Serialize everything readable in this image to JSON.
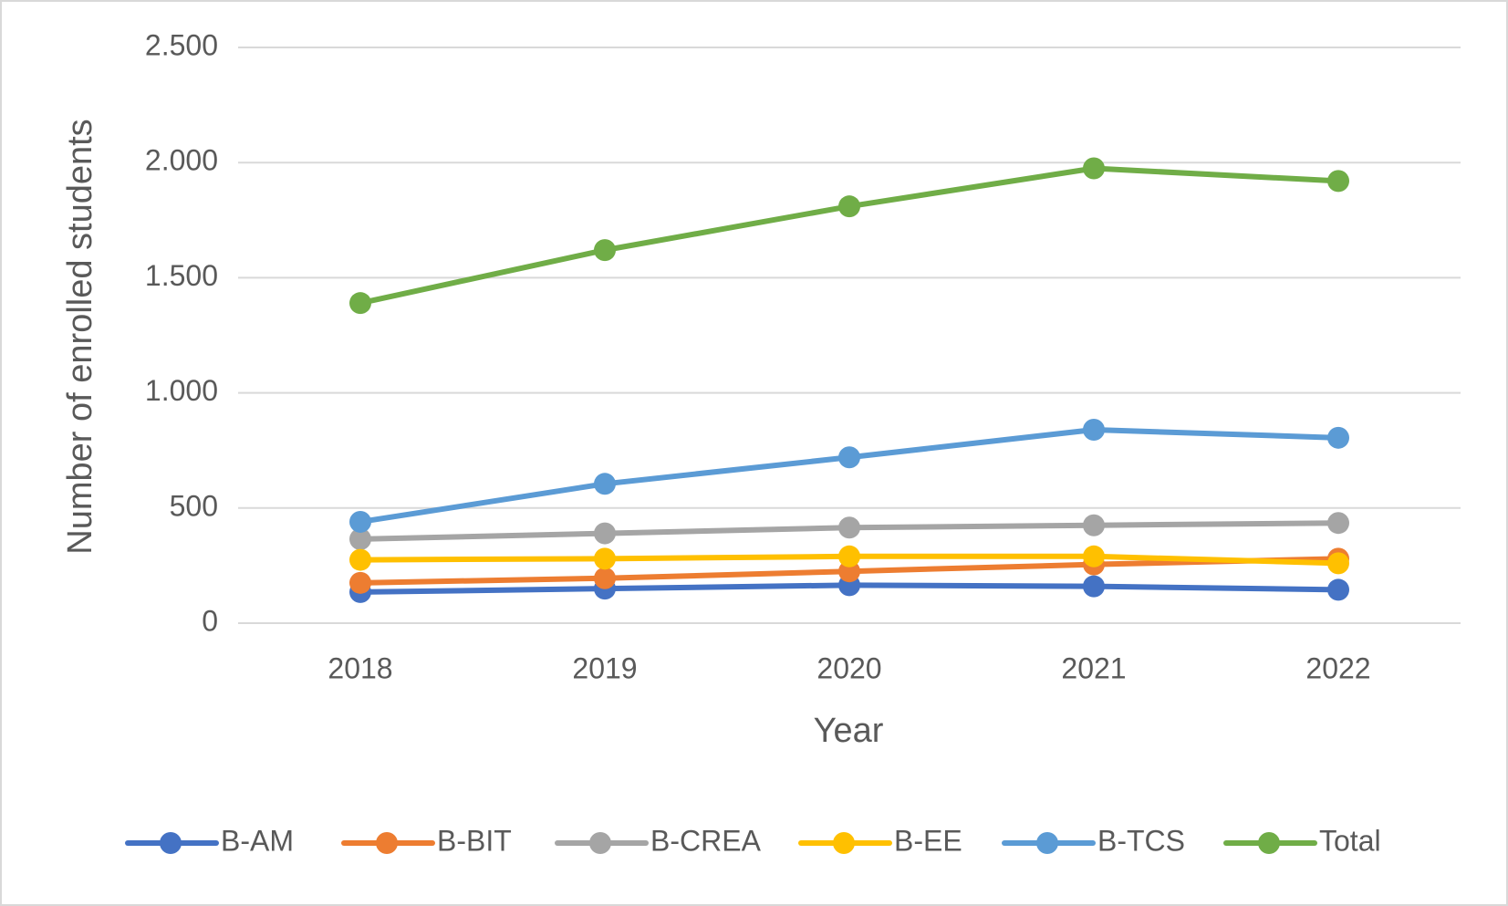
{
  "chart_data": {
    "type": "line",
    "x_label": "Year",
    "y_label": "Number of enrolled students",
    "categories": [
      "2018",
      "2019",
      "2020",
      "2021",
      "2022"
    ],
    "series": [
      {
        "name": "B-AM",
        "color": "#4472c4",
        "values": [
          135,
          150,
          165,
          160,
          145
        ]
      },
      {
        "name": "B-BIT",
        "color": "#ed7d31",
        "values": [
          175,
          195,
          225,
          255,
          280
        ]
      },
      {
        "name": "B-CREA",
        "color": "#a5a5a5",
        "values": [
          365,
          390,
          415,
          425,
          435
        ]
      },
      {
        "name": "B-EE",
        "color": "#ffc000",
        "values": [
          275,
          280,
          290,
          290,
          260
        ]
      },
      {
        "name": "B-TCS",
        "color": "#5b9bd5",
        "values": [
          440,
          605,
          720,
          840,
          805
        ]
      },
      {
        "name": "Total",
        "color": "#70ad47",
        "values": [
          1390,
          1620,
          1810,
          1975,
          1920
        ]
      }
    ],
    "ylim": [
      0,
      2500
    ],
    "yticks": [
      0,
      500,
      {
        "value": 1000,
        "label": "1.000"
      },
      {
        "value": 1500,
        "label": "1.500"
      },
      {
        "value": 2000,
        "label": "2.000"
      },
      {
        "value": 2500,
        "label": "2.500"
      }
    ],
    "grid": true,
    "legend": "bottom"
  }
}
